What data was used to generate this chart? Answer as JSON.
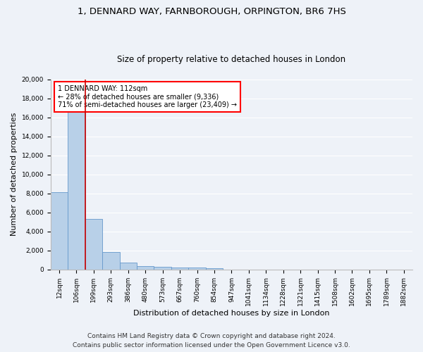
{
  "title_line1": "1, DENNARD WAY, FARNBOROUGH, ORPINGTON, BR6 7HS",
  "title_line2": "Size of property relative to detached houses in London",
  "xlabel": "Distribution of detached houses by size in London",
  "ylabel": "Number of detached properties",
  "bar_color": "#b8d0e8",
  "bar_edge_color": "#6699cc",
  "categories": [
    "12sqm",
    "106sqm",
    "199sqm",
    "293sqm",
    "386sqm",
    "480sqm",
    "573sqm",
    "667sqm",
    "760sqm",
    "854sqm",
    "947sqm",
    "1041sqm",
    "1134sqm",
    "1228sqm",
    "1321sqm",
    "1415sqm",
    "1508sqm",
    "1602sqm",
    "1695sqm",
    "1789sqm",
    "1882sqm"
  ],
  "values": [
    8100,
    16700,
    5300,
    1850,
    700,
    350,
    270,
    200,
    180,
    150,
    0,
    0,
    0,
    0,
    0,
    0,
    0,
    0,
    0,
    0,
    0
  ],
  "ylim": [
    0,
    20000
  ],
  "yticks": [
    0,
    2000,
    4000,
    6000,
    8000,
    10000,
    12000,
    14000,
    16000,
    18000,
    20000
  ],
  "red_line_x": 1.5,
  "annotation_text": "1 DENNARD WAY: 112sqm\n← 28% of detached houses are smaller (9,336)\n71% of semi-detached houses are larger (23,409) →",
  "annotation_box_color": "white",
  "annotation_box_edge_color": "red",
  "red_line_color": "#cc0000",
  "footnote1": "Contains HM Land Registry data © Crown copyright and database right 2024.",
  "footnote2": "Contains public sector information licensed under the Open Government Licence v3.0.",
  "background_color": "#eef2f8",
  "grid_color": "#ffffff",
  "title_fontsize": 9.5,
  "subtitle_fontsize": 8.5,
  "axis_label_fontsize": 8,
  "tick_fontsize": 6.5,
  "footnote_fontsize": 6.5,
  "annotation_fontsize": 7
}
